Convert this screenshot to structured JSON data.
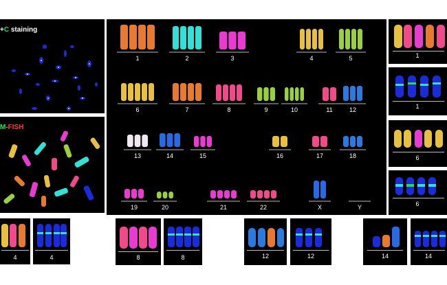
{
  "spread_panels": {
    "dapi": {
      "title_prefix": "+",
      "title_c": "C",
      "title_suffix": " staining"
    },
    "mfish": {
      "title_m": "M-",
      "title_fish": "FISH"
    }
  },
  "karyotype": {
    "labels": [
      "1",
      "2",
      "3",
      "4",
      "5",
      "6",
      "7",
      "8",
      "9",
      "10",
      "11",
      "12",
      "13",
      "14",
      "15",
      "16",
      "17",
      "18",
      "19",
      "20",
      "21",
      "22",
      "X",
      "Y"
    ]
  },
  "right_panels": [
    "1",
    "1",
    "6",
    "6"
  ],
  "bottom_panels": [
    "4",
    "4",
    "8",
    "8",
    "12",
    "12",
    "14",
    "14"
  ],
  "colors": {
    "background": "#000000",
    "dapi_blue": "#1a2cd8",
    "cyan": "#33e0d8",
    "magenta": "#e83bd0",
    "yellow": "#e8c040",
    "orange": "#e87a30",
    "pink": "#f04a8a",
    "green": "#9ad040"
  }
}
